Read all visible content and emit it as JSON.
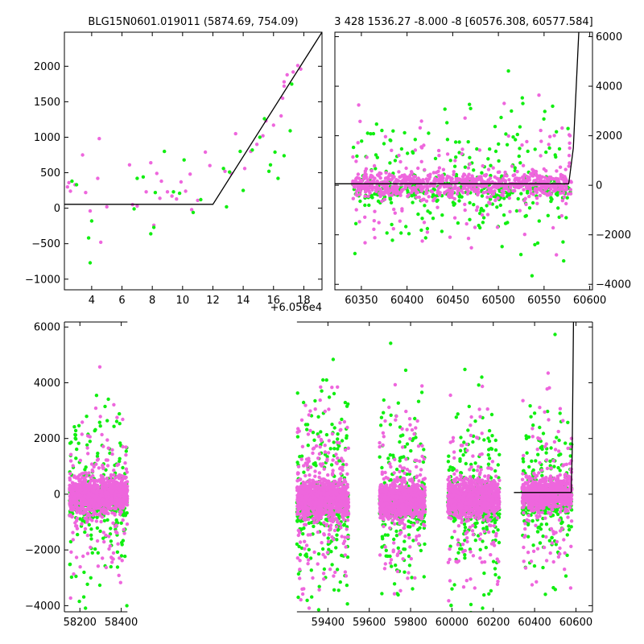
{
  "colors": {
    "series_a": "#EE66DD",
    "series_b": "#11EE11",
    "model": "#000000",
    "axes": "#000000"
  },
  "chart_data": [
    {
      "id": "top-left",
      "type": "scatter",
      "title": "BLG15N0601.019011 (5874.69, 754.09)",
      "x_offset_label": "+6.056e4",
      "xlim": [
        2.2,
        19.2
      ],
      "ylim": [
        -1150,
        2480
      ],
      "y_axis_side": "left",
      "xticks": [
        4,
        6,
        8,
        10,
        12,
        14,
        16,
        18
      ],
      "yticks": [
        -1000,
        -500,
        0,
        500,
        1000,
        1500,
        2000
      ],
      "model_line": [
        [
          2.2,
          55
        ],
        [
          12.0,
          55
        ],
        [
          19.2,
          2480
        ]
      ],
      "series": [
        {
          "color_key": "series_a",
          "points": [
            [
              2.4,
              300
            ],
            [
              2.5,
              360
            ],
            [
              2.6,
              240
            ],
            [
              2.9,
              330
            ],
            [
              3.4,
              750
            ],
            [
              3.6,
              220
            ],
            [
              3.9,
              -40
            ],
            [
              4.4,
              420
            ],
            [
              4.5,
              980
            ],
            [
              4.6,
              -480
            ],
            [
              5.0,
              20
            ],
            [
              6.5,
              610
            ],
            [
              6.7,
              50
            ],
            [
              7.0,
              30
            ],
            [
              7.6,
              230
            ],
            [
              7.9,
              640
            ],
            [
              8.1,
              -240
            ],
            [
              8.3,
              490
            ],
            [
              8.5,
              140
            ],
            [
              8.6,
              380
            ],
            [
              9.0,
              230
            ],
            [
              9.3,
              170
            ],
            [
              9.6,
              130
            ],
            [
              9.9,
              370
            ],
            [
              10.2,
              240
            ],
            [
              10.5,
              480
            ],
            [
              10.6,
              -20
            ],
            [
              11.0,
              110
            ],
            [
              11.5,
              790
            ],
            [
              11.8,
              600
            ],
            [
              12.8,
              520
            ],
            [
              13.2,
              490
            ],
            [
              13.5,
              1050
            ],
            [
              14.1,
              560
            ],
            [
              14.5,
              800
            ],
            [
              14.9,
              900
            ],
            [
              15.3,
              1020
            ],
            [
              15.5,
              1230
            ],
            [
              16.0,
              1170
            ],
            [
              16.5,
              1300
            ],
            [
              16.6,
              1550
            ],
            [
              16.7,
              1720
            ],
            [
              16.7,
              1780
            ],
            [
              16.9,
              1880
            ],
            [
              17.3,
              1920
            ],
            [
              17.6,
              2010
            ],
            [
              17.8,
              1960
            ]
          ]
        },
        {
          "color_key": "series_b",
          "points": [
            [
              2.7,
              380
            ],
            [
              3.0,
              330
            ],
            [
              3.8,
              -420
            ],
            [
              3.9,
              -770
            ],
            [
              4.0,
              -180
            ],
            [
              6.8,
              -10
            ],
            [
              7.0,
              420
            ],
            [
              7.4,
              440
            ],
            [
              7.9,
              -360
            ],
            [
              8.1,
              -270
            ],
            [
              8.2,
              220
            ],
            [
              8.8,
              800
            ],
            [
              9.4,
              230
            ],
            [
              9.8,
              210
            ],
            [
              10.1,
              680
            ],
            [
              10.7,
              -60
            ],
            [
              11.2,
              120
            ],
            [
              12.7,
              560
            ],
            [
              12.9,
              20
            ],
            [
              13.1,
              510
            ],
            [
              13.8,
              800
            ],
            [
              14.0,
              250
            ],
            [
              14.6,
              820
            ],
            [
              15.1,
              1000
            ],
            [
              15.4,
              1260
            ],
            [
              15.7,
              520
            ],
            [
              15.8,
              610
            ],
            [
              16.1,
              790
            ],
            [
              16.3,
              420
            ],
            [
              16.7,
              740
            ],
            [
              17.1,
              1090
            ],
            [
              17.2,
              1750
            ]
          ]
        }
      ]
    },
    {
      "id": "top-right",
      "type": "scatter",
      "title": "3 428 1536.27 -8.000 -8 [60576.308, 60577.584]",
      "xlim": [
        60321,
        60603
      ],
      "ylim": [
        -4220,
        6180
      ],
      "y_axis_side": "right",
      "xticks": [
        60350,
        60400,
        60450,
        60500,
        60550,
        60600
      ],
      "yticks": [
        -4000,
        -2000,
        0,
        2000,
        4000,
        6000
      ],
      "model_line": [
        [
          60321,
          60
        ],
        [
          60577.0,
          60
        ],
        [
          60582.0,
          1500
        ],
        [
          60588.0,
          6180
        ]
      ],
      "clusters": [
        {
          "xmin": 60340,
          "xmax": 60580,
          "n_a": 900,
          "n_b": 450,
          "core_sd": 230,
          "wide_sd": 1400,
          "wide_frac": 0.28,
          "ymean": 30
        }
      ],
      "tail_points": [
        [
          60577.5,
          1200
        ],
        [
          60578.0,
          1700
        ],
        [
          60578.3,
          2000
        ],
        [
          60577.8,
          900
        ],
        [
          60578.1,
          1500
        ]
      ]
    },
    {
      "id": "bottom",
      "type": "scatter",
      "xlim": [
        58125,
        60680
      ],
      "ylim": [
        -4220,
        6180
      ],
      "y_axis_side": "left",
      "x_break": [
        58430,
        59250
      ],
      "xticks_left": [
        58200,
        58400
      ],
      "xticks_right": [
        59400,
        59600,
        59800,
        60000,
        60200,
        60400,
        60600
      ],
      "yticks": [
        -4000,
        -2000,
        0,
        2000,
        4000,
        6000
      ],
      "model_line": [
        [
          60300,
          60
        ],
        [
          60577.0,
          60
        ],
        [
          60582.0,
          1500
        ],
        [
          60588.0,
          6180
        ]
      ],
      "clusters": [
        {
          "xmin": 58150,
          "xmax": 58430,
          "n_a": 1100,
          "n_b": 420,
          "core_sd": 300,
          "wide_sd": 1700,
          "wide_frac": 0.25,
          "ymean": -50
        },
        {
          "xmin": 59250,
          "xmax": 59500,
          "n_a": 1100,
          "n_b": 480,
          "core_sd": 320,
          "wide_sd": 1800,
          "wide_frac": 0.28,
          "ymean": -150
        },
        {
          "xmin": 59650,
          "xmax": 59870,
          "n_a": 900,
          "n_b": 380,
          "core_sd": 310,
          "wide_sd": 1700,
          "wide_frac": 0.26,
          "ymean": -200
        },
        {
          "xmin": 59980,
          "xmax": 60230,
          "n_a": 1000,
          "n_b": 420,
          "core_sd": 320,
          "wide_sd": 1700,
          "wide_frac": 0.25,
          "ymean": -150
        },
        {
          "xmin": 60340,
          "xmax": 60580,
          "n_a": 800,
          "n_b": 380,
          "core_sd": 280,
          "wide_sd": 1600,
          "wide_frac": 0.27,
          "ymean": 0
        }
      ],
      "tail_points": [
        [
          60577.5,
          1200
        ],
        [
          60578.0,
          1700
        ],
        [
          60578.3,
          2000
        ],
        [
          60577.8,
          900
        ]
      ]
    }
  ]
}
